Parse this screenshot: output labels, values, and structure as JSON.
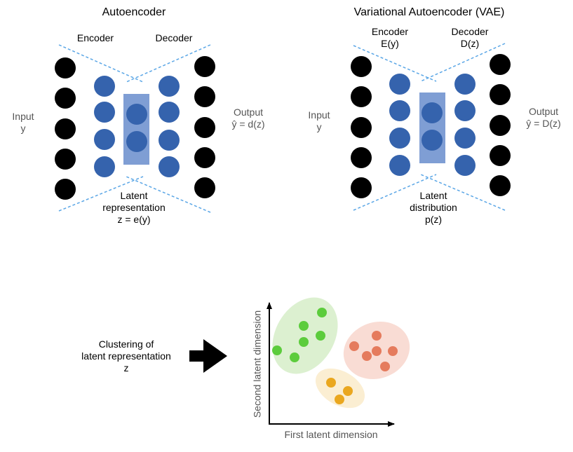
{
  "autoencoder": {
    "title": "Autoencoder",
    "encoder_label": "Encoder",
    "decoder_label": "Decoder",
    "input_label": "Input\ny",
    "output_label": "Output\nŷ = d(z)",
    "latent_label": "Latent\nrepresentation\nz = e(y)"
  },
  "vae": {
    "title": "Variational Autoencoder (VAE)",
    "encoder_label": "Encoder\nE(y)",
    "decoder_label": "Decoder\nD(z)",
    "input_label": "Input\ny",
    "output_label": "Output\nŷ = D(z)",
    "latent_label": "Latent\ndistribution\np(z)"
  },
  "clustering": {
    "label": "Clustering of\nlatent representation\nz",
    "x_axis_label": "First latent dimension",
    "y_axis_label": "Second latent dimension"
  },
  "colors": {
    "io_node": "#000000",
    "hidden_node": "#3563ad",
    "latent_box": "#7f9ed4",
    "dashed": "#5aa6e6",
    "green_cluster_fill": "#dcf0d0",
    "green_point": "#5ccc3c",
    "red_cluster_fill": "#f9dcd4",
    "red_point": "#e57b5d",
    "yellow_cluster_fill": "#fbeed2",
    "yellow_point": "#eaa71f"
  }
}
